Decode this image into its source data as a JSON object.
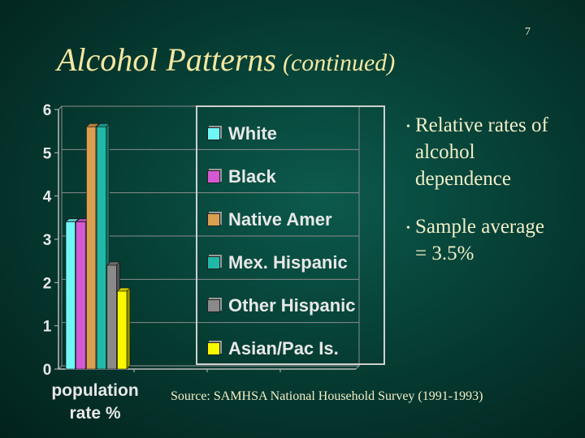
{
  "slide_number": "7",
  "title": {
    "main": "Alcohol Patterns",
    "sub": "(continued)"
  },
  "bullets": [
    "Relative rates of alcohol dependence",
    "Sample average = 3.5%"
  ],
  "source": "Source: SAMHSA National Household Survey (1991-1993)",
  "chart_data": {
    "type": "bar",
    "categories": [
      "White",
      "Black",
      "Native Amer",
      "Mex. Hispanic",
      "Other Hispanic",
      "Asian/Pac Is."
    ],
    "values": [
      3.4,
      3.4,
      5.6,
      5.6,
      2.4,
      1.8
    ],
    "colors": [
      "#6ff6f6",
      "#d45ad4",
      "#d8a050",
      "#20b9a8",
      "#8a8a8a",
      "#f8f800"
    ],
    "xlabel": "population rate %",
    "ylim": [
      0,
      6
    ],
    "yticks": [
      "0",
      "1",
      "2",
      "3",
      "4",
      "5",
      "6"
    ],
    "grid": true,
    "legend_position": "right"
  }
}
